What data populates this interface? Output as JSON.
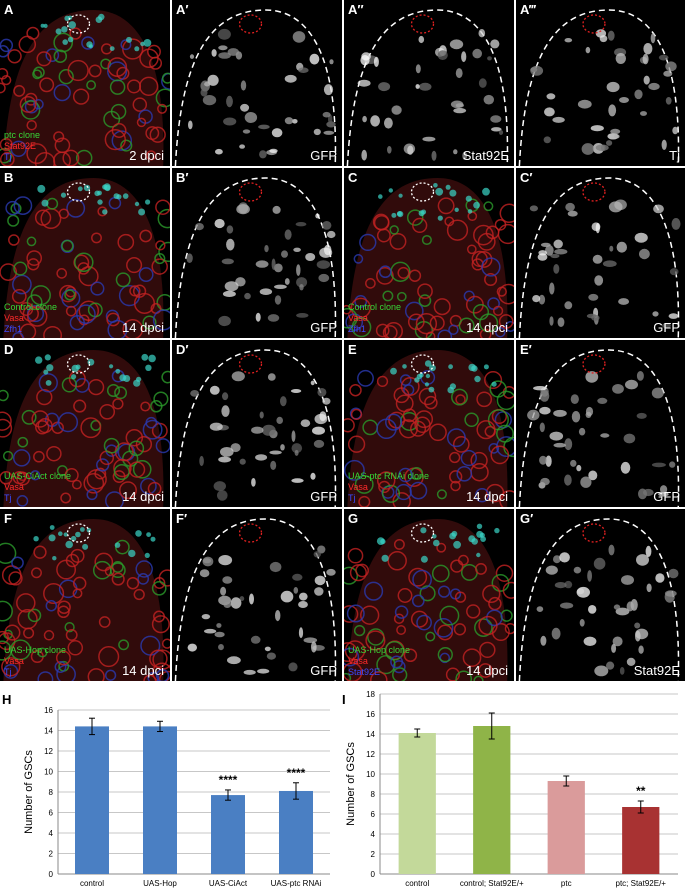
{
  "panels": [
    {
      "id": "A",
      "letter": "A",
      "type": "color",
      "legend": [
        {
          "text": "ptc clone",
          "c": "g",
          "italic": "ptc"
        },
        {
          "text": "Stat92E",
          "c": "r"
        },
        {
          "text": "Tj",
          "c": "b"
        }
      ],
      "label": "2 dpci"
    },
    {
      "id": "A1",
      "letter": "A′",
      "type": "gray",
      "label": "GFP"
    },
    {
      "id": "A2",
      "letter": "A″",
      "type": "gray",
      "label": "Stat92E"
    },
    {
      "id": "A3",
      "letter": "A‴",
      "type": "gray",
      "label": "Tj"
    },
    {
      "id": "B",
      "letter": "B",
      "type": "color",
      "legend": [
        {
          "text": "Control clone",
          "c": "g"
        },
        {
          "text": "Vasa",
          "c": "r"
        },
        {
          "text": "Zfh1",
          "c": "b"
        }
      ],
      "label": "14 dpci"
    },
    {
      "id": "B1",
      "letter": "B′",
      "type": "gray",
      "label": "GFP"
    },
    {
      "id": "C",
      "letter": "C",
      "type": "color",
      "legend": [
        {
          "text": "Control clone",
          "c": "g"
        },
        {
          "text": "Vasa",
          "c": "r"
        },
        {
          "text": "Zfh1",
          "c": "b"
        }
      ],
      "label": "14 dpci"
    },
    {
      "id": "C1",
      "letter": "C′",
      "type": "gray",
      "label": "GFP"
    },
    {
      "id": "D",
      "letter": "D",
      "type": "color",
      "legend": [
        {
          "text": "UAS-CiAct clone",
          "c": "g"
        },
        {
          "text": "Vasa",
          "c": "r"
        },
        {
          "text": "Tj",
          "c": "b"
        }
      ],
      "label": "14 dpci"
    },
    {
      "id": "D1",
      "letter": "D′",
      "type": "gray",
      "label": "GFP"
    },
    {
      "id": "E",
      "letter": "E",
      "type": "color",
      "legend": [
        {
          "text": "UAS-ptc RNAi clone",
          "c": "g"
        },
        {
          "text": "Vasa",
          "c": "r"
        },
        {
          "text": "Tj",
          "c": "b"
        }
      ],
      "label": "14 dpci"
    },
    {
      "id": "E1",
      "letter": "E′",
      "type": "gray",
      "label": "GFP"
    },
    {
      "id": "F",
      "letter": "F",
      "type": "color",
      "legend": [
        {
          "text": "UAS-Hop clone",
          "c": "g"
        },
        {
          "text": "Vasa",
          "c": "r"
        },
        {
          "text": "Tj",
          "c": "b"
        }
      ],
      "label": "14 dpci"
    },
    {
      "id": "F1",
      "letter": "F′",
      "type": "gray",
      "label": "GFP"
    },
    {
      "id": "G",
      "letter": "G",
      "type": "color",
      "legend": [
        {
          "text": "UAS-Hop clone",
          "c": "g"
        },
        {
          "text": "Vasa",
          "c": "r"
        },
        {
          "text": "Stat92E",
          "c": "b"
        }
      ],
      "label": "14 dpci"
    },
    {
      "id": "G1",
      "letter": "G′",
      "type": "gray",
      "label": "Stat92E"
    }
  ],
  "chart_data": [
    {
      "type": "bar",
      "panel_letter": "H",
      "ylabel": "Number of GSCs",
      "ylim": [
        0,
        16
      ],
      "yticks": [
        0,
        2,
        4,
        6,
        8,
        10,
        12,
        14,
        16
      ],
      "grid": true,
      "categories": [
        "control",
        "UAS-Hop",
        "UAS-CiAct",
        "UAS-ptc RNAi"
      ],
      "values": [
        14.4,
        14.4,
        7.7,
        8.1
      ],
      "errors": [
        0.8,
        0.5,
        0.5,
        0.8
      ],
      "annotations": [
        "",
        "",
        "****",
        "****"
      ],
      "colors": [
        "#4a7fc3",
        "#4a7fc3",
        "#4a7fc3",
        "#4a7fc3"
      ]
    },
    {
      "type": "bar",
      "panel_letter": "I",
      "ylabel": "Number of GSCs",
      "ylim": [
        0,
        18
      ],
      "yticks": [
        0,
        2,
        4,
        6,
        8,
        10,
        12,
        14,
        16,
        18
      ],
      "grid": true,
      "categories": [
        "control",
        "control; Stat92E/+",
        "ptc",
        "ptc; Stat92E/+"
      ],
      "values": [
        14.1,
        14.8,
        9.3,
        6.7
      ],
      "errors": [
        0.4,
        1.3,
        0.5,
        0.6
      ],
      "annotations": [
        "",
        "",
        "",
        "**"
      ],
      "colors": [
        "#c3d99a",
        "#8fb448",
        "#da9b9b",
        "#a83232"
      ]
    }
  ]
}
